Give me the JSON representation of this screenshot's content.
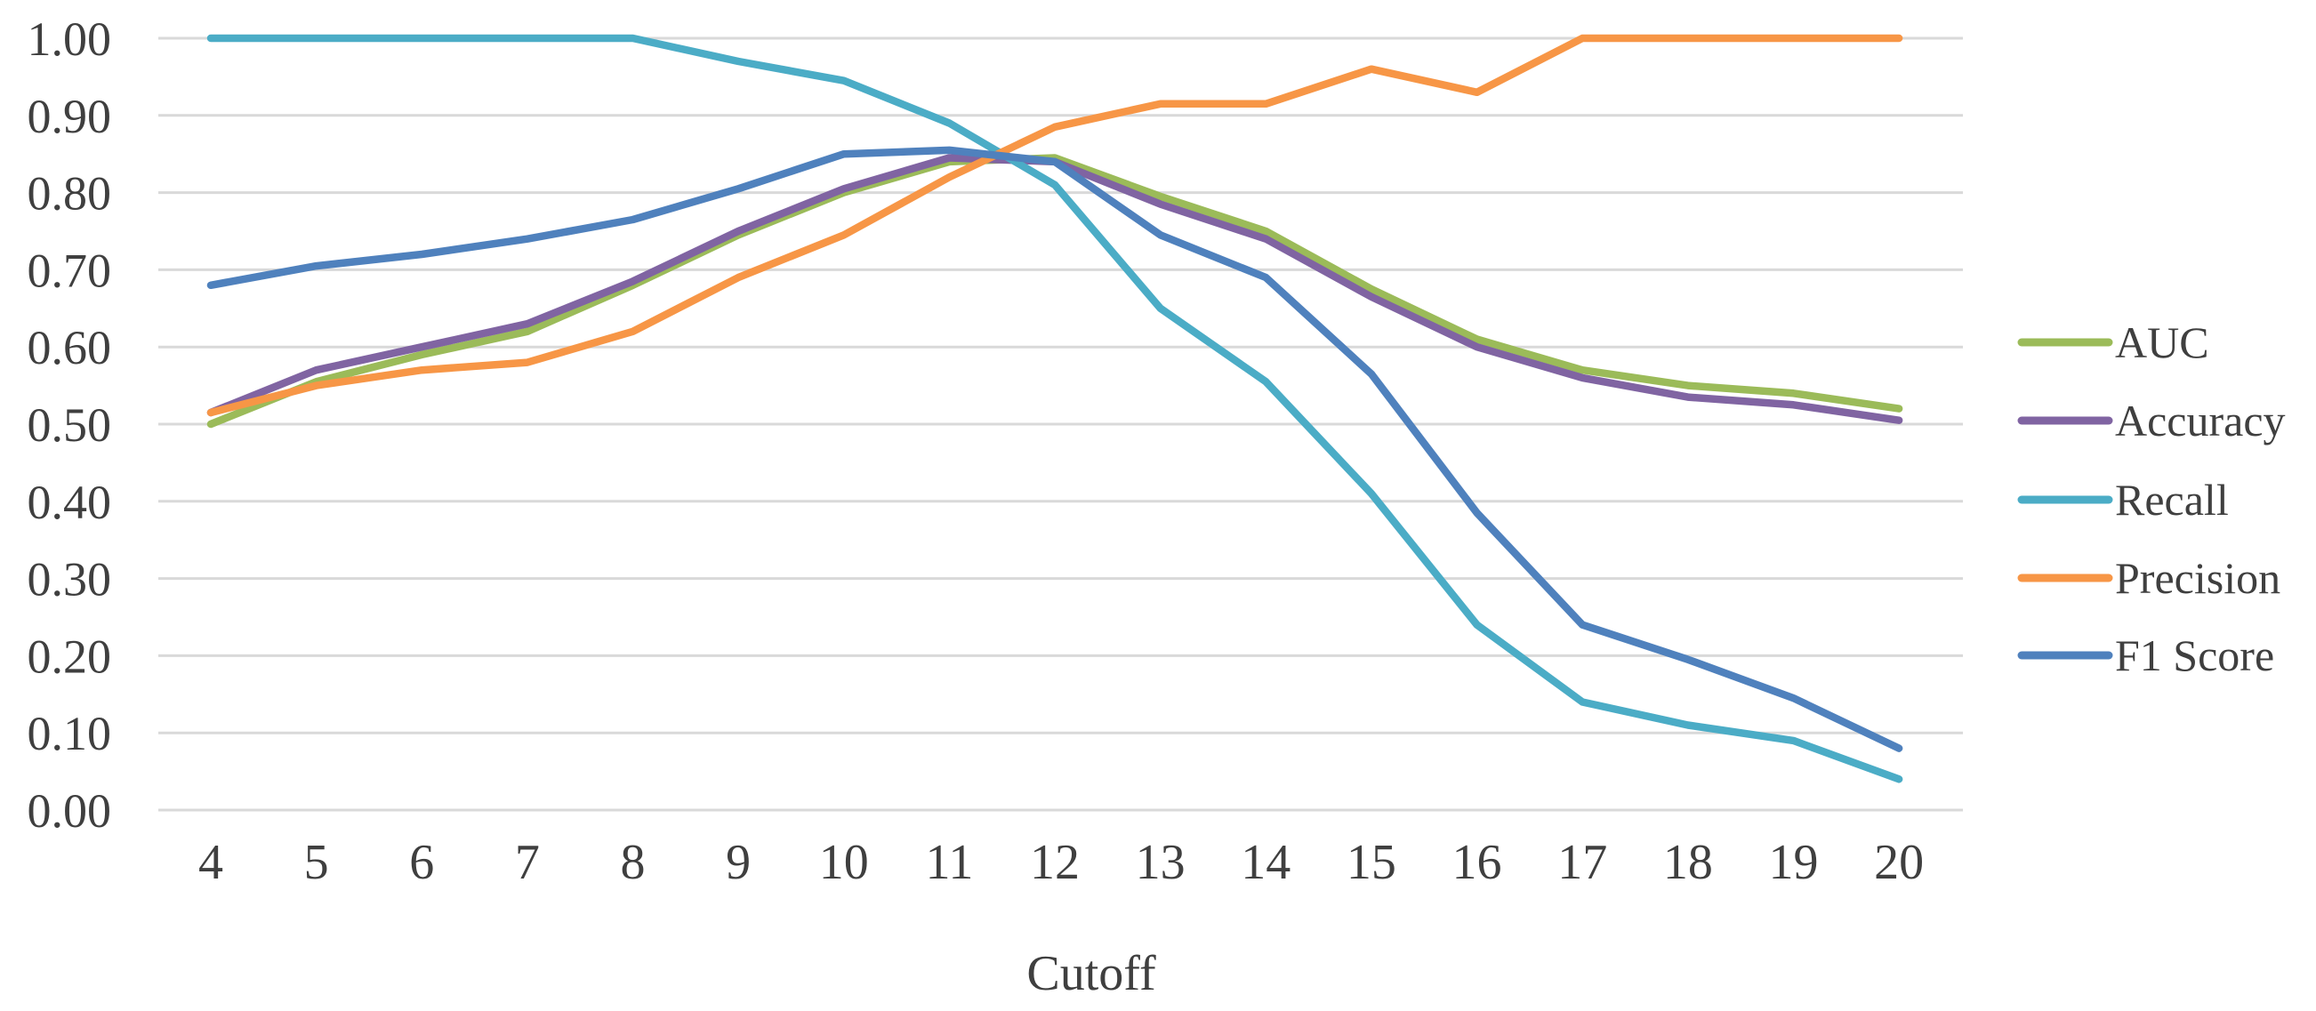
{
  "chart_data": {
    "type": "line",
    "title": "",
    "xlabel": "Cutoff",
    "ylabel": "",
    "x_categories": [
      "4",
      "5",
      "6",
      "7",
      "8",
      "9",
      "10",
      "11",
      "12",
      "13",
      "14",
      "15",
      "16",
      "17",
      "18",
      "19",
      "20"
    ],
    "y_ticks": [
      "0.00",
      "0.10",
      "0.20",
      "0.30",
      "0.40",
      "0.50",
      "0.60",
      "0.70",
      "0.80",
      "0.90",
      "1.00"
    ],
    "ylim": [
      0.0,
      1.0
    ],
    "grid": "horizontal",
    "legend_position": "right",
    "background_color": "#ffffff",
    "gridline_color": "#d9d9d9",
    "text_color": "#3f3f3f",
    "series": [
      {
        "name": "AUC",
        "color": "#9bbb59",
        "values": [
          0.5,
          0.555,
          0.59,
          0.62,
          0.68,
          0.745,
          0.8,
          0.84,
          0.845,
          0.795,
          0.75,
          0.675,
          0.61,
          0.57,
          0.55,
          0.54,
          0.52
        ]
      },
      {
        "name": "Accuracy",
        "color": "#8064a2",
        "values": [
          0.515,
          0.57,
          0.6,
          0.63,
          0.685,
          0.75,
          0.805,
          0.845,
          0.84,
          0.785,
          0.74,
          0.665,
          0.6,
          0.56,
          0.535,
          0.525,
          0.505
        ]
      },
      {
        "name": "Recall",
        "color": "#4bacc6",
        "values": [
          1.0,
          1.0,
          1.0,
          1.0,
          1.0,
          0.97,
          0.945,
          0.89,
          0.81,
          0.65,
          0.555,
          0.41,
          0.24,
          0.14,
          0.11,
          0.09,
          0.04
        ]
      },
      {
        "name": "Precision",
        "color": "#f79646",
        "values": [
          0.515,
          0.55,
          0.57,
          0.58,
          0.62,
          0.69,
          0.745,
          0.82,
          0.885,
          0.915,
          0.915,
          0.96,
          0.93,
          1.0,
          1.0,
          1.0,
          1.0
        ]
      },
      {
        "name": "F1 Score",
        "color": "#4f81bd",
        "values": [
          0.68,
          0.705,
          0.72,
          0.74,
          0.765,
          0.805,
          0.85,
          0.855,
          0.84,
          0.745,
          0.69,
          0.565,
          0.385,
          0.24,
          0.195,
          0.145,
          0.08
        ]
      }
    ]
  }
}
